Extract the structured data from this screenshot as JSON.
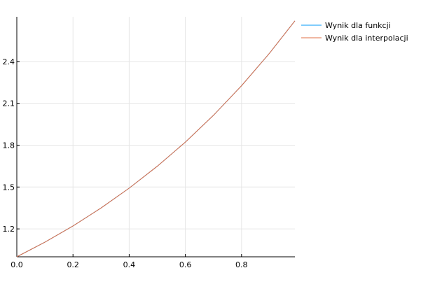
{
  "chart_data": {
    "type": "line",
    "title": "",
    "xlabel": "",
    "ylabel": "",
    "xlim": [
      0.0,
      0.99
    ],
    "ylim": [
      1.0,
      2.72
    ],
    "grid": true,
    "legend_position": "top-right",
    "x_ticks": [
      0.0,
      0.2,
      0.4,
      0.6,
      0.8
    ],
    "x_tick_labels": [
      "0.0",
      "0.2",
      "0.4",
      "0.6",
      "0.8"
    ],
    "y_ticks": [
      1.2,
      1.5,
      1.8,
      2.1,
      2.4
    ],
    "y_tick_labels": [
      "1.2",
      "1.5",
      "1.8",
      "2.1",
      "2.4"
    ],
    "series": [
      {
        "name": "Wynik dla funkcji",
        "color": "#009AFA",
        "x": [
          0.0,
          0.1,
          0.2,
          0.3,
          0.4,
          0.5,
          0.6,
          0.7,
          0.8,
          0.9,
          0.99
        ],
        "y": [
          1.0,
          1.105,
          1.221,
          1.35,
          1.492,
          1.649,
          1.822,
          2.014,
          2.226,
          2.46,
          2.691
        ]
      },
      {
        "name": "Wynik dla interpolacji",
        "color": "#E26F46",
        "x": [
          0.0,
          0.1,
          0.2,
          0.3,
          0.4,
          0.5,
          0.6,
          0.7,
          0.8,
          0.9,
          0.99
        ],
        "y": [
          1.0,
          1.105,
          1.221,
          1.35,
          1.492,
          1.649,
          1.822,
          2.014,
          2.226,
          2.46,
          2.691
        ]
      }
    ]
  }
}
